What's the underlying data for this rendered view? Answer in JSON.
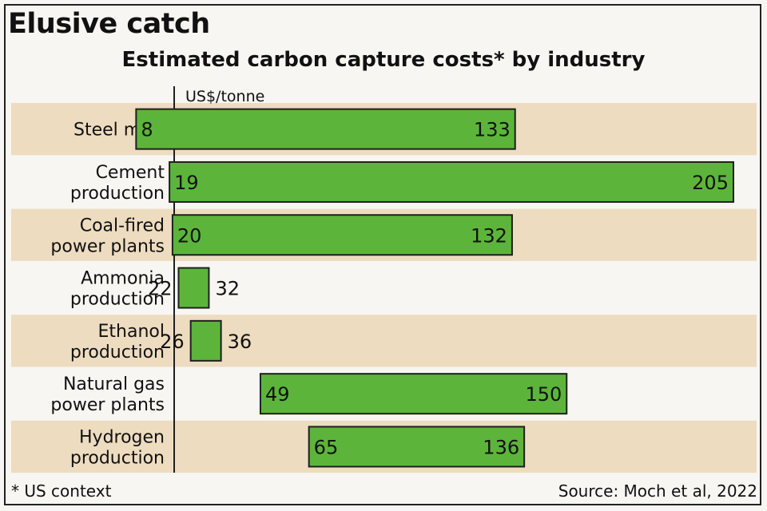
{
  "title": "Elusive catch",
  "chart_data": {
    "type": "bar",
    "subtitle": "Estimated carbon capture costs* by industry",
    "unit_label": "US$/tonne",
    "xlim": [
      0,
      210
    ],
    "categories": [
      [
        "Steel mills"
      ],
      [
        "Cement",
        "production"
      ],
      [
        "Coal-fired",
        "power plants"
      ],
      [
        "Ammonia",
        "production"
      ],
      [
        "Ethanol",
        "production"
      ],
      [
        "Natural gas",
        "power plants"
      ],
      [
        "Hydrogen",
        "production"
      ]
    ],
    "ranges": [
      {
        "low": 8,
        "high": 133
      },
      {
        "low": 19,
        "high": 205
      },
      {
        "low": 20,
        "high": 132
      },
      {
        "low": 22,
        "high": 32
      },
      {
        "low": 26,
        "high": 36
      },
      {
        "low": 49,
        "high": 150
      },
      {
        "low": 65,
        "high": 136
      }
    ]
  },
  "footnote": "* US context",
  "source": "Source: Moch et al, 2022",
  "colors": {
    "bar_fill": "#5cb53a",
    "bar_stroke": "#1f1f1f",
    "row_band": "#eddcc0",
    "background": "#f7f6f2",
    "axis": "#1f1f1f"
  }
}
